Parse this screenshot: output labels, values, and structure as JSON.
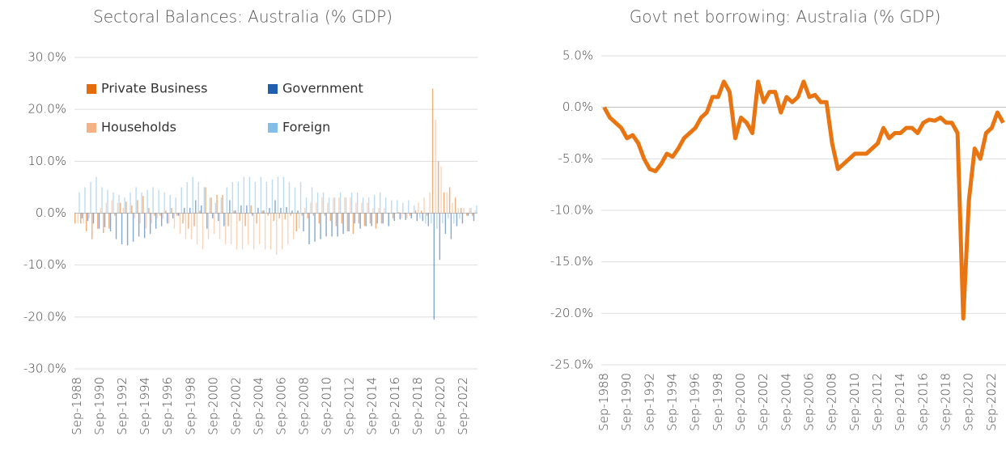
{
  "chart_data": [
    {
      "type": "bar",
      "title": "Sectoral Balances: Australia (% GDP)",
      "legend": "upper left",
      "categories": [
        "Sep-1988",
        null,
        null,
        null,
        "Sep-1990",
        null,
        null,
        null,
        "Sep-1992",
        null,
        null,
        null,
        "Sep-1994",
        null,
        null,
        null,
        "Sep-1996",
        null,
        null,
        null,
        "Sep-1998",
        null,
        null,
        null,
        "Sep-2000",
        null,
        null,
        null,
        "Sep-2002",
        null,
        null,
        null,
        "Sep-2004",
        null,
        null,
        null,
        "Sep-2006",
        null,
        null,
        null,
        "Sep-2008",
        null,
        null,
        null,
        "Sep-2010",
        null,
        null,
        null,
        "Sep-2012",
        null,
        null,
        null,
        "Sep-2014",
        null,
        null,
        null,
        "Sep-2016",
        null,
        null,
        null,
        "Sep-2018",
        null,
        null,
        null,
        "Sep-2020",
        null,
        null,
        null,
        "Sep-2022",
        null,
        null
      ],
      "series": [
        {
          "name": "Private Business",
          "color": "#e46c0a",
          "values": [
            -2,
            -2,
            -3.5,
            -5,
            -3,
            -3.8,
            -3,
            -0.5,
            2,
            2.2,
            1.5,
            2.5,
            3.3,
            1,
            -0.5,
            -0.5,
            0.5,
            1,
            -0.5,
            -2,
            -3,
            -2.5,
            0.5,
            5,
            3,
            3.5,
            3.5,
            -2.5,
            0.5,
            -1.5,
            -2.5,
            1.5,
            -2,
            0.5,
            -0.5,
            -1.5,
            -1,
            -1.2,
            -0.5,
            -3.5,
            -0.5,
            -1,
            -0.5,
            -2,
            -0.5,
            -1.5,
            -2.5,
            -2,
            -3.5,
            -4,
            -2,
            -2.5,
            -2,
            -3,
            -2,
            0,
            -1,
            0.2,
            -0.2,
            -0.5,
            0.5,
            0.5,
            -0.5,
            24,
            10,
            4,
            5,
            3,
            1,
            -0.5,
            -0.5
          ]
        },
        {
          "name": "Government",
          "color": "#1f5fae",
          "values": [
            0,
            -1,
            -1.5,
            -2,
            -3,
            -2.7,
            -3.5,
            -5,
            -6,
            -6.2,
            -5.5,
            -4.5,
            -4.8,
            -4,
            -3,
            -2.5,
            -2,
            -1,
            -0.5,
            1,
            1,
            2.5,
            1.5,
            -3,
            -1,
            -1.5,
            -2.5,
            2.5,
            0.5,
            1.5,
            1.5,
            -0.5,
            1,
            0.5,
            1,
            2.5,
            1,
            1.2,
            0.5,
            0.5,
            -3.5,
            -6,
            -5.5,
            -5,
            -4.5,
            -4.5,
            -4.5,
            -4,
            -3.5,
            -2,
            -3,
            -2.5,
            -2.5,
            -2,
            -2,
            -2.5,
            -1.5,
            -1.2,
            -1.3,
            -1,
            -1.5,
            -1.5,
            -2.5,
            -20.5,
            -9,
            -4,
            -5,
            -2.5,
            -2,
            -0.5,
            -1.5
          ]
        },
        {
          "name": "Households",
          "color": "#f4b183",
          "values": [
            -2,
            -2,
            -1,
            0,
            1,
            2,
            2.5,
            2,
            1,
            0,
            -1,
            -2,
            -3,
            -2,
            -1,
            -1,
            -2,
            -3,
            -4,
            -5,
            -5,
            -6,
            -7,
            -5,
            -4,
            -5,
            -6,
            -6,
            -7,
            -7,
            -6,
            -7,
            -6,
            -7,
            -7,
            -8,
            -7,
            -6,
            -5,
            -3,
            1,
            2,
            2,
            3,
            2,
            3,
            3,
            3,
            3,
            2,
            2,
            2,
            1,
            1,
            1,
            0,
            0,
            -1,
            -1,
            0,
            2,
            3,
            4,
            18,
            9,
            4,
            2,
            1,
            1,
            1,
            0.5
          ]
        },
        {
          "name": "Foreign",
          "color": "#85bde9",
          "values": [
            4,
            5,
            6,
            7,
            5,
            4.5,
            4,
            3.5,
            3,
            4,
            5,
            4,
            4.5,
            5,
            4.5,
            4,
            3.5,
            3,
            5,
            6,
            7,
            6,
            5,
            3,
            2,
            3,
            5,
            6,
            6,
            7,
            7,
            6,
            7,
            6,
            6.5,
            7,
            7,
            6,
            5,
            6,
            3,
            5,
            4,
            4,
            3,
            3,
            4,
            3,
            4,
            4,
            3,
            3,
            3.5,
            4,
            3,
            2.5,
            2.5,
            2,
            2.5,
            1.5,
            -1,
            -2,
            -2,
            -3,
            -2,
            -1,
            -2,
            -1,
            0,
            1,
            1.5
          ]
        }
      ],
      "ylim": [
        -30,
        30
      ],
      "yticks": [
        {
          "value": -30,
          "label": "-30.0%"
        },
        {
          "value": -20,
          "label": "-20.0%"
        },
        {
          "value": -10,
          "label": "-10.0%"
        },
        {
          "value": 0,
          "label": "0.0%"
        },
        {
          "value": 10,
          "label": "10.0%"
        },
        {
          "value": 20,
          "label": "20.0%"
        },
        {
          "value": 30,
          "label": "30.0%"
        }
      ],
      "grid": true
    },
    {
      "type": "line",
      "title": "Govt net borrowing: Australia (% GDP)",
      "color": "#e87511",
      "categories": [
        "Sep-1988",
        null,
        null,
        null,
        "Sep-1990",
        null,
        null,
        null,
        "Sep-1992",
        null,
        null,
        null,
        "Sep-1994",
        null,
        null,
        null,
        "Sep-1996",
        null,
        null,
        null,
        "Sep-1998",
        null,
        null,
        null,
        "Sep-2000",
        null,
        null,
        null,
        "Sep-2002",
        null,
        null,
        null,
        "Sep-2004",
        null,
        null,
        null,
        "Sep-2006",
        null,
        null,
        null,
        "Sep-2008",
        null,
        null,
        null,
        "Sep-2010",
        null,
        null,
        null,
        "Sep-2012",
        null,
        null,
        null,
        "Sep-2014",
        null,
        null,
        null,
        "Sep-2016",
        null,
        null,
        null,
        "Sep-2018",
        null,
        null,
        null,
        "Sep-2020",
        null,
        null,
        null,
        "Sep-2022",
        null,
        null
      ],
      "values": [
        0,
        -1,
        -1.5,
        -2,
        -3,
        -2.7,
        -3.5,
        -5,
        -6,
        -6.2,
        -5.5,
        -4.5,
        -4.8,
        -4,
        -3,
        -2.5,
        -2,
        -1,
        -0.5,
        1,
        1,
        2.5,
        1.5,
        -3,
        -1,
        -1.5,
        -2.5,
        2.5,
        0.5,
        1.5,
        1.5,
        -0.5,
        1,
        0.5,
        1,
        2.5,
        1,
        1.2,
        0.5,
        0.5,
        -3.5,
        -6,
        -5.5,
        -5,
        -4.5,
        -4.5,
        -4.5,
        -4,
        -3.5,
        -2,
        -3,
        -2.5,
        -2.5,
        -2,
        -2,
        -2.5,
        -1.5,
        -1.2,
        -1.3,
        -1,
        -1.5,
        -1.5,
        -2.5,
        -20.5,
        -9,
        -4,
        -5,
        -2.5,
        -2,
        -0.5,
        -1.5
      ],
      "ylim": [
        -25,
        5
      ],
      "yticks": [
        {
          "value": -25,
          "label": "-25.0%"
        },
        {
          "value": -20,
          "label": "-20.0%"
        },
        {
          "value": -15,
          "label": "-15.0%"
        },
        {
          "value": -10,
          "label": "-10.0%"
        },
        {
          "value": -5,
          "label": "-5.0%"
        },
        {
          "value": 0,
          "label": "0.0%"
        },
        {
          "value": 5,
          "label": "5.0%"
        }
      ],
      "grid": true
    }
  ]
}
